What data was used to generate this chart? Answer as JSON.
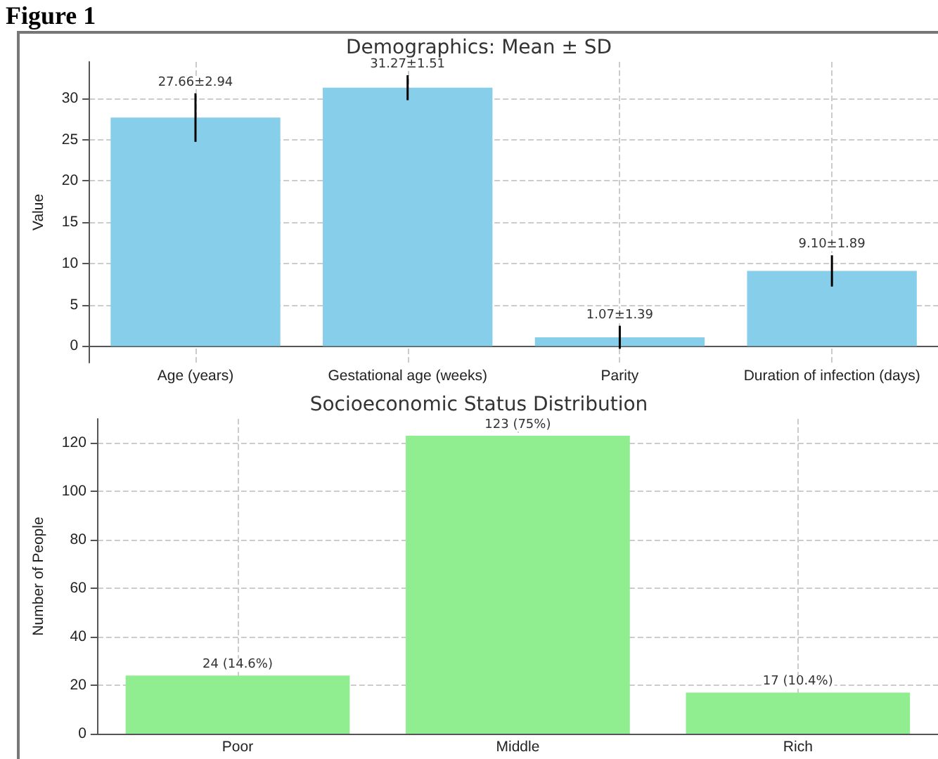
{
  "chart_data": [
    {
      "type": "bar",
      "title": "Demographics: Mean ± SD",
      "ylabel": "Value",
      "annotations": [
        "Figure 1"
      ],
      "categories": [
        "Age (years)",
        "Gestational age (weeks)",
        "Parity",
        "Duration of infection (days)"
      ],
      "values": [
        27.66,
        31.27,
        1.07,
        9.1
      ],
      "errors": [
        2.94,
        1.51,
        1.39,
        1.89
      ],
      "color": "#87ceeb",
      "value_labels": [
        "27.66±2.94",
        "31.27±1.51",
        "1.07±1.39",
        "9.10±1.89"
      ],
      "ylim": [
        -2,
        34.4
      ],
      "yticks": [
        0,
        5,
        10,
        15,
        20,
        25,
        30
      ],
      "grid": true
    },
    {
      "type": "bar",
      "title": "Socioeconomic Status Distribution",
      "ylabel": "Number of People",
      "categories": [
        "Poor",
        "Middle",
        "Rich"
      ],
      "values": [
        24,
        123,
        17
      ],
      "color": "#90ee90",
      "value_labels": [
        "24 (14.6%)",
        "123 (75%)",
        "17 (10.4%)"
      ],
      "ylim": [
        0,
        130
      ],
      "yticks": [
        0,
        20,
        40,
        60,
        80,
        100,
        120
      ],
      "grid": true
    }
  ]
}
